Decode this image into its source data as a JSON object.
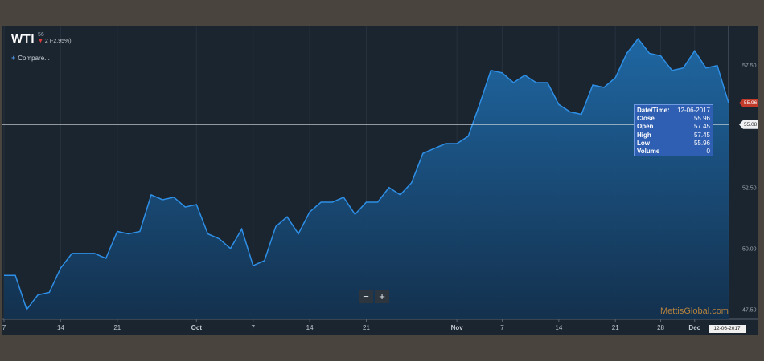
{
  "header": {
    "symbol": "WTI",
    "last_fragment": "56",
    "change_arrow": "▼",
    "change_text": "2 (-2.95%)",
    "compare_icon": "plus-icon",
    "compare_label": "Compare..."
  },
  "tooltip": {
    "rows": [
      {
        "label": "Date/Time:",
        "value": "12-06-2017"
      },
      {
        "label": "Close",
        "value": "55.96"
      },
      {
        "label": "Open",
        "value": "57.45"
      },
      {
        "label": "High",
        "value": "57.45"
      },
      {
        "label": "Low",
        "value": "55.96"
      },
      {
        "label": "Volume",
        "value": "0"
      }
    ]
  },
  "zoom": {
    "out_icon": "minus-icon",
    "out_label": "−",
    "in_icon": "plus-icon",
    "in_label": "+"
  },
  "watermark": "MettisGlobal.com",
  "x_date_label": "12-06-2017",
  "last_price_badge": "55.96",
  "crosshair_badge": "55.08",
  "colors": {
    "line": "#2e8fe6",
    "background": "#1b2530",
    "badge_red": "#c23a2a",
    "tooltip": "#2f5fb3"
  },
  "chart_data": {
    "type": "area",
    "series": [
      {
        "values": [
          48.9,
          48.9,
          47.5,
          48.1,
          48.2,
          49.2,
          49.8,
          49.8,
          49.8,
          49.6,
          50.7,
          50.6,
          50.7,
          52.2,
          52.0,
          52.1,
          51.7,
          51.8,
          50.6,
          50.4,
          50.0,
          50.8,
          49.3,
          49.5,
          50.9,
          51.3,
          50.6,
          51.5,
          51.9,
          51.9,
          52.1,
          51.4,
          51.9,
          51.9,
          52.5,
          52.2,
          52.7,
          53.9,
          54.1,
          54.3,
          54.3,
          54.6,
          55.9,
          57.3,
          57.2,
          56.8,
          57.1,
          56.8,
          56.8,
          55.9,
          55.6,
          55.5,
          56.7,
          56.6,
          57.0,
          58.0,
          58.6,
          58.0,
          57.9,
          57.3,
          57.4,
          58.1,
          57.4,
          57.5,
          55.96
        ]
      }
    ],
    "x_ticks": [
      {
        "label": "7",
        "index": 0
      },
      {
        "label": "14",
        "index": 5
      },
      {
        "label": "21",
        "index": 10
      },
      {
        "label": "Oct",
        "index": 17
      },
      {
        "label": "7",
        "index": 22
      },
      {
        "label": "14",
        "index": 27
      },
      {
        "label": "21",
        "index": 32
      },
      {
        "label": "Nov",
        "index": 40
      },
      {
        "label": "7",
        "index": 44
      },
      {
        "label": "14",
        "index": 49
      },
      {
        "label": "21",
        "index": 54
      },
      {
        "label": "28",
        "index": 58
      },
      {
        "label": "Dec",
        "index": 61
      }
    ],
    "y_ticks": [
      47.5,
      50.0,
      52.5,
      55.0,
      57.5
    ],
    "y_tick_labels": [
      "47.50",
      "50.00",
      "52.50",
      "55.00",
      "57.50"
    ],
    "ylim": [
      47.1,
      59.1
    ],
    "last_price": 55.96,
    "crosshair_price": 55.08,
    "grid": true
  }
}
